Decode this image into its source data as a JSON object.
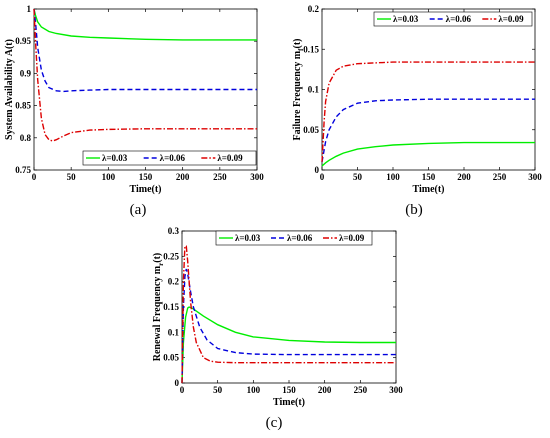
{
  "colors": {
    "s1": "#00ee00",
    "s2": "#0000dd",
    "s3": "#dd0000"
  },
  "chart_data": [
    {
      "id": "a",
      "type": "line",
      "panel_label": "(a)",
      "xlabel": "Time(t)",
      "ylabel": "System Availability A(t)",
      "xlim": [
        0,
        300
      ],
      "ylim": [
        0.75,
        1
      ],
      "xticks": [
        0,
        50,
        100,
        150,
        200,
        250,
        300
      ],
      "yticks": [
        0.75,
        0.8,
        0.85,
        0.9,
        0.95,
        1
      ],
      "ytick_labels": [
        "0.75",
        "0.8",
        "0.85",
        "0.9",
        "0.95",
        "1"
      ],
      "legend_position": "bottom",
      "series": [
        {
          "name": "λ=0.03",
          "style": "solid",
          "x": [
            0,
            2,
            5,
            10,
            20,
            30,
            50,
            75,
            100,
            150,
            200,
            250,
            300
          ],
          "y": [
            1,
            0.99,
            0.98,
            0.972,
            0.965,
            0.962,
            0.958,
            0.956,
            0.955,
            0.953,
            0.952,
            0.952,
            0.952
          ]
        },
        {
          "name": "λ=0.06",
          "style": "dashed",
          "x": [
            0,
            2,
            5,
            10,
            15,
            20,
            30,
            40,
            50,
            75,
            100,
            150,
            200,
            250,
            300
          ],
          "y": [
            1,
            0.98,
            0.94,
            0.905,
            0.888,
            0.878,
            0.873,
            0.872,
            0.873,
            0.874,
            0.875,
            0.875,
            0.875,
            0.875,
            0.875
          ]
        },
        {
          "name": "λ=0.09",
          "style": "dashdot",
          "x": [
            0,
            2,
            5,
            10,
            15,
            20,
            25,
            30,
            40,
            50,
            75,
            100,
            150,
            200,
            250,
            300
          ],
          "y": [
            1,
            0.95,
            0.89,
            0.83,
            0.805,
            0.797,
            0.795,
            0.797,
            0.803,
            0.808,
            0.812,
            0.813,
            0.814,
            0.814,
            0.814,
            0.814
          ]
        }
      ]
    },
    {
      "id": "b",
      "type": "line",
      "panel_label": "(b)",
      "xlabel": "Time(t)",
      "ylabel": "Failure Frequency m",
      "ylabel_sub": "f",
      "ylabel_tail": "(t)",
      "xlim": [
        0,
        300
      ],
      "ylim": [
        0,
        0.2
      ],
      "xticks": [
        0,
        50,
        100,
        150,
        200,
        250,
        300
      ],
      "yticks": [
        0,
        0.05,
        0.1,
        0.15,
        0.2
      ],
      "ytick_labels": [
        "0",
        "0.05",
        "0.1",
        "0.15",
        "0.2"
      ],
      "legend_position": "top",
      "series": [
        {
          "name": "λ=0.03",
          "style": "solid",
          "x": [
            0,
            5,
            10,
            20,
            30,
            50,
            75,
            100,
            150,
            200,
            250,
            300
          ],
          "y": [
            0.005,
            0.009,
            0.012,
            0.017,
            0.021,
            0.026,
            0.029,
            0.031,
            0.033,
            0.034,
            0.034,
            0.034
          ]
        },
        {
          "name": "λ=0.06",
          "style": "dashed",
          "x": [
            0,
            5,
            10,
            20,
            30,
            50,
            75,
            100,
            150,
            200,
            250,
            300
          ],
          "y": [
            0.01,
            0.035,
            0.05,
            0.066,
            0.075,
            0.083,
            0.086,
            0.087,
            0.088,
            0.088,
            0.088,
            0.088
          ]
        },
        {
          "name": "λ=0.09",
          "style": "dashdot",
          "x": [
            0,
            3,
            5,
            10,
            20,
            30,
            50,
            75,
            100,
            150,
            200,
            250,
            300
          ],
          "y": [
            0.01,
            0.06,
            0.085,
            0.108,
            0.124,
            0.129,
            0.132,
            0.133,
            0.134,
            0.134,
            0.134,
            0.134,
            0.134
          ]
        }
      ]
    },
    {
      "id": "c",
      "type": "line",
      "panel_label": "(c)",
      "xlabel": "Time(t)",
      "ylabel": "Renewal Frequency m",
      "ylabel_sub": "r",
      "ylabel_tail": "(t)",
      "xlim": [
        0,
        300
      ],
      "ylim": [
        0,
        0.3
      ],
      "xticks": [
        0,
        50,
        100,
        150,
        200,
        250,
        300
      ],
      "yticks": [
        0,
        0.05,
        0.1,
        0.15,
        0.2,
        0.25,
        0.3
      ],
      "ytick_labels": [
        "0",
        "0.05",
        "0.1",
        "0.15",
        "0.2",
        "0.25",
        "0.3"
      ],
      "legend_position": "top",
      "series": [
        {
          "name": "λ=0.03",
          "style": "solid",
          "x": [
            0,
            2,
            5,
            8,
            10,
            15,
            20,
            30,
            50,
            75,
            100,
            150,
            200,
            250,
            300
          ],
          "y": [
            0,
            0.08,
            0.13,
            0.148,
            0.15,
            0.147,
            0.142,
            0.132,
            0.115,
            0.1,
            0.091,
            0.084,
            0.081,
            0.08,
            0.08
          ]
        },
        {
          "name": "λ=0.06",
          "style": "dashed",
          "x": [
            0,
            2,
            4,
            6,
            8,
            12,
            16,
            25,
            35,
            50,
            75,
            100,
            150,
            200,
            250,
            300
          ],
          "y": [
            0,
            0.15,
            0.21,
            0.225,
            0.215,
            0.18,
            0.15,
            0.11,
            0.085,
            0.068,
            0.06,
            0.057,
            0.056,
            0.056,
            0.056,
            0.056
          ]
        },
        {
          "name": "λ=0.09",
          "style": "dashdot",
          "x": [
            0,
            2,
            4,
            6,
            8,
            12,
            16,
            20,
            30,
            40,
            50,
            75,
            100,
            150,
            200,
            250,
            300
          ],
          "y": [
            0,
            0.2,
            0.27,
            0.27,
            0.24,
            0.16,
            0.11,
            0.08,
            0.05,
            0.043,
            0.041,
            0.04,
            0.04,
            0.04,
            0.04,
            0.04,
            0.04
          ]
        }
      ]
    }
  ]
}
